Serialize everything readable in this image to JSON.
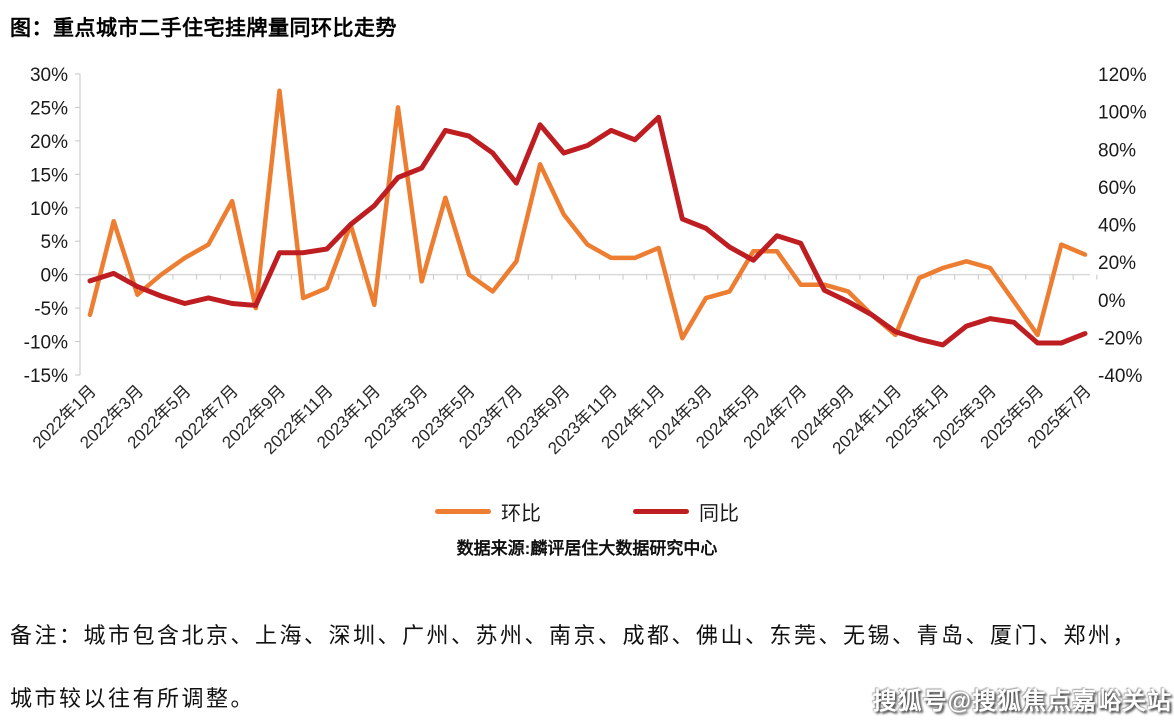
{
  "title": "图：重点城市二手住宅挂牌量同环比走势",
  "chart_data": {
    "type": "line",
    "title": "图：重点城市二手住宅挂牌量同环比走势",
    "x": [
      "2022年1月",
      "2022年2月",
      "2022年3月",
      "2022年4月",
      "2022年5月",
      "2022年6月",
      "2022年7月",
      "2022年8月",
      "2022年9月",
      "2022年10月",
      "2022年11月",
      "2022年12月",
      "2023年1月",
      "2023年2月",
      "2023年3月",
      "2023年4月",
      "2023年5月",
      "2023年6月",
      "2023年7月",
      "2023年8月",
      "2023年9月",
      "2023年10月",
      "2023年11月",
      "2023年12月",
      "2024年1月",
      "2024年2月",
      "2024年3月",
      "2024年4月",
      "2024年5月",
      "2024年6月",
      "2024年7月",
      "2024年8月",
      "2024年9月",
      "2024年10月",
      "2024年11月",
      "2024年12月",
      "2025年1月",
      "2025年2月",
      "2025年3月",
      "2025年4月",
      "2025年5月",
      "2025年6月",
      "2025年7月"
    ],
    "x_tick_step": 2,
    "series": [
      {
        "name": "环比",
        "axis": "left",
        "color": "#ED7D31",
        "values": [
          -6,
          8,
          -3,
          0,
          2.5,
          4.5,
          11,
          -5,
          27.5,
          -3.5,
          -2,
          7.5,
          -4.5,
          25,
          -1,
          11.5,
          0,
          -2.5,
          2,
          16.5,
          9,
          4.5,
          2.5,
          2.5,
          4,
          -9.5,
          -3.5,
          -2.5,
          3.5,
          3.5,
          -1.5,
          -1.5,
          -2.5,
          -6,
          -9,
          -0.5,
          1,
          2,
          1,
          -4,
          -9,
          4.5,
          3
        ]
      },
      {
        "name": "同比",
        "axis": "right",
        "color": "#BE1E21",
        "values": [
          10,
          14,
          7,
          2,
          -2,
          1,
          -2,
          -3,
          25,
          25,
          27,
          40,
          50,
          65,
          70,
          90,
          87,
          78,
          62,
          93,
          78,
          82,
          90,
          85,
          97,
          43,
          38,
          28,
          21,
          34,
          30,
          5,
          -1,
          -8,
          -17,
          -21,
          -24,
          -14,
          -10,
          -12,
          -23,
          -23,
          -18
        ]
      }
    ],
    "left_axis": {
      "min": -15,
      "max": 30,
      "tick_labels": [
        "30%",
        "25%",
        "20%",
        "15%",
        "10%",
        "5%",
        "0%",
        "-5%",
        "-10%",
        "-15%"
      ]
    },
    "right_axis": {
      "min": -40,
      "max": 120,
      "tick_labels": [
        "120%",
        "100%",
        "80%",
        "60%",
        "40%",
        "20%",
        "0%",
        "-20%",
        "-40%"
      ]
    },
    "legend_position": "bottom",
    "grid": "zero line only"
  },
  "source_note": "数据来源:麟评居住大数据研究中心",
  "footnotes": [
    "备注：城市包含北京、上海、深圳、广州、苏州、南京、成都、佛山、东莞、无锡、青岛、厦门、郑州，",
    "城市较以往有所调整。"
  ],
  "watermark": "搜狐号@搜狐焦点嘉峪关站"
}
